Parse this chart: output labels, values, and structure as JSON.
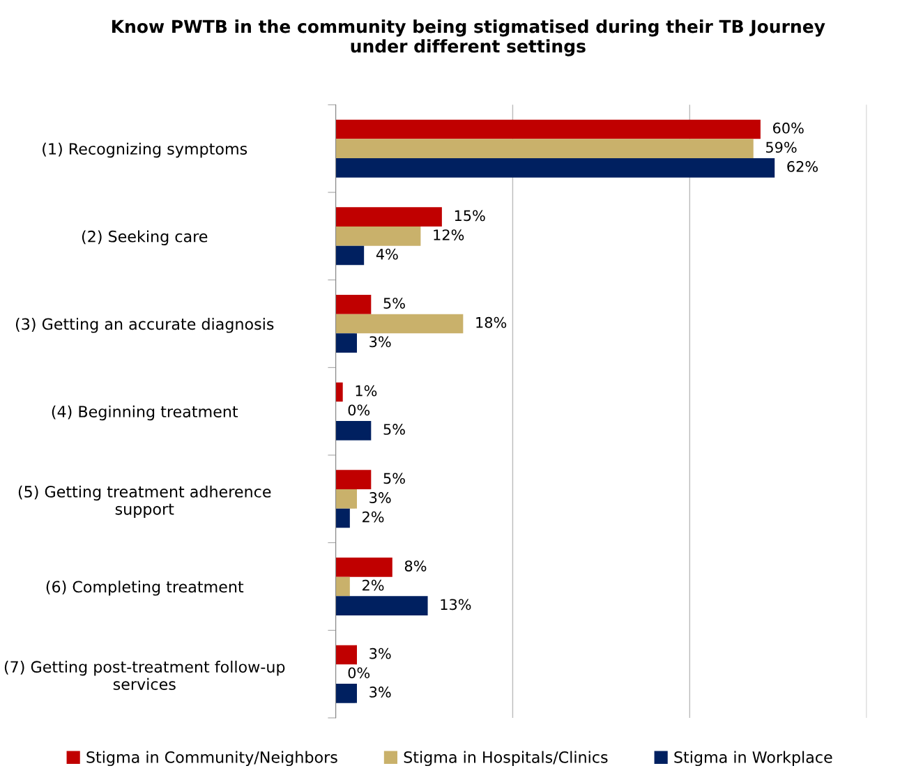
{
  "chart_data": {
    "type": "bar",
    "orientation": "horizontal",
    "title": "Know PWTB in the community being stigmatised during their TB Journey\nunder different settings",
    "categories": [
      "(1) Recognizing symptoms",
      "(2) Seeking care",
      "(3) Getting an accurate diagnosis",
      "(4) Beginning treatment",
      "(5) Getting treatment adherence\nsupport",
      "(6) Completing treatment",
      "(7) Getting post-treatment follow-up\nservices"
    ],
    "series": [
      {
        "name": "Stigma in Community/Neighbors",
        "color": "#c00000",
        "values": [
          60,
          15,
          5,
          1,
          5,
          8,
          3
        ],
        "value_labels": [
          "60%",
          "15%",
          "5%",
          "1%",
          "5%",
          "8%",
          "3%"
        ]
      },
      {
        "name": "Stigma in Hospitals/Clinics",
        "color": "#c9b16b",
        "values": [
          59,
          12,
          18,
          0,
          3,
          2,
          0
        ],
        "value_labels": [
          "59%",
          "12%",
          "18%",
          "0%",
          "3%",
          "2%",
          "0%"
        ]
      },
      {
        "name": "Stigma in Workplace",
        "color": "#002060",
        "values": [
          62,
          4,
          3,
          5,
          2,
          13,
          3
        ],
        "value_labels": [
          "62%",
          "4%",
          "3%",
          "5%",
          "2%",
          "13%",
          "3%"
        ]
      }
    ],
    "xlim": [
      0,
      75
    ],
    "xticks": [
      {
        "value": 0,
        "label": null
      },
      {
        "value": 25,
        "label": null
      },
      {
        "value": 50,
        "label": null
      },
      {
        "value": 75,
        "label": null
      }
    ],
    "grid": "x",
    "legend": "bottom",
    "tick_labels": "y"
  }
}
